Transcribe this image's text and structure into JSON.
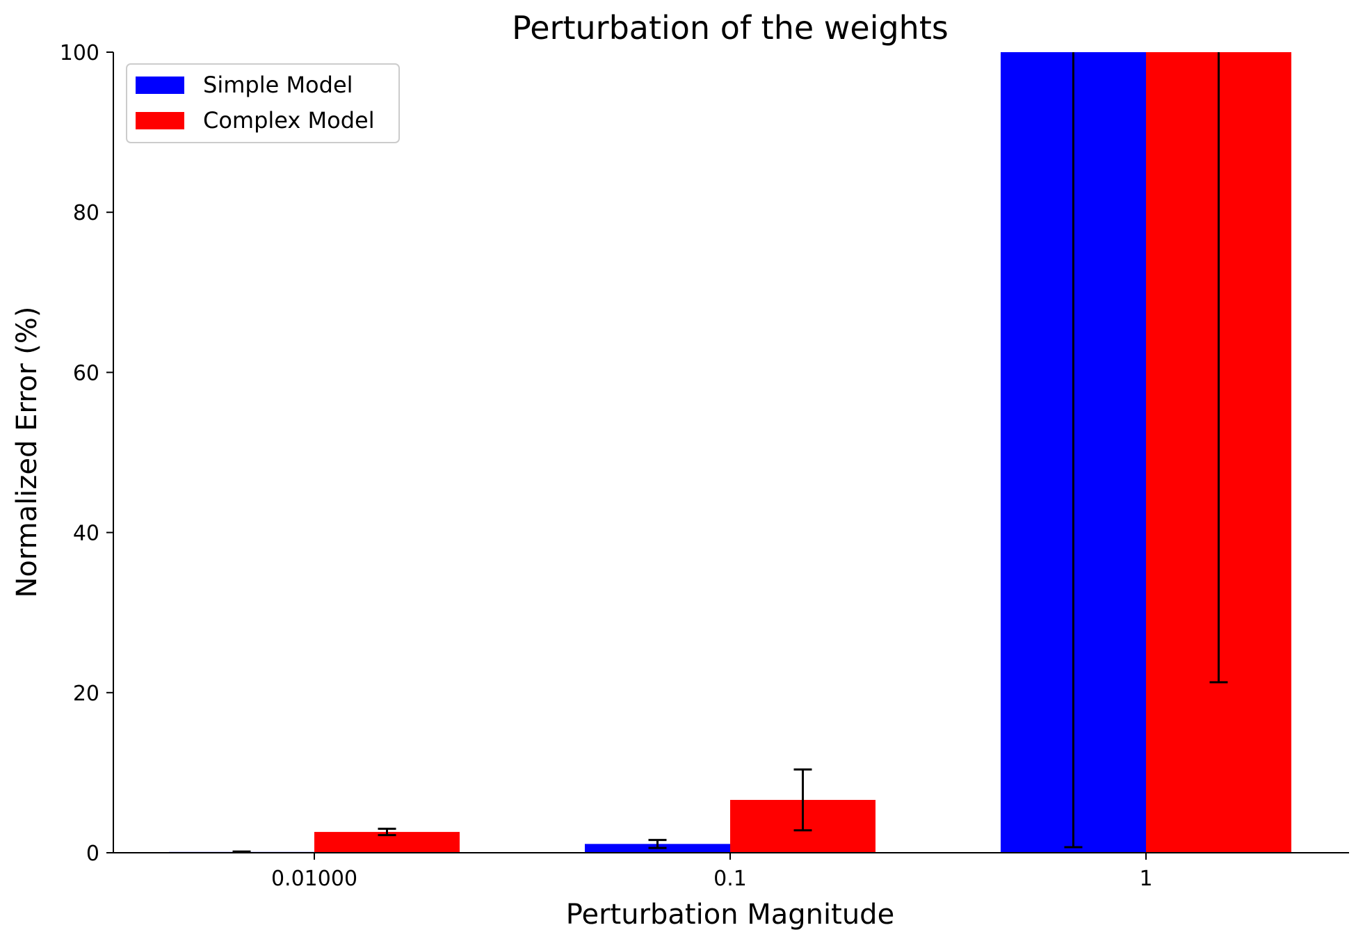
{
  "chart_data": {
    "type": "bar",
    "title": "Perturbation of the weights",
    "xlabel": "Perturbation Magnitude",
    "ylabel": "Normalized Error (%)",
    "categories": [
      "0.01000",
      "0.1",
      "1"
    ],
    "ylim": [
      0,
      100
    ],
    "yticks": [
      "0",
      "20",
      "40",
      "60",
      "80",
      "100"
    ],
    "grid": false,
    "legend": {
      "placement": "top-left"
    },
    "series": [
      {
        "name": "Simple Model",
        "color": "#0000ff",
        "values": [
          0.1,
          1.1,
          100
        ],
        "error_low": [
          0.05,
          0.6,
          0.7
        ],
        "error_high": [
          0.15,
          1.6,
          100
        ]
      },
      {
        "name": "Complex Model",
        "color": "#ff0000",
        "values": [
          2.6,
          6.6,
          100
        ],
        "error_low": [
          2.2,
          2.8,
          21.3
        ],
        "error_high": [
          3.0,
          10.4,
          100
        ]
      }
    ]
  }
}
